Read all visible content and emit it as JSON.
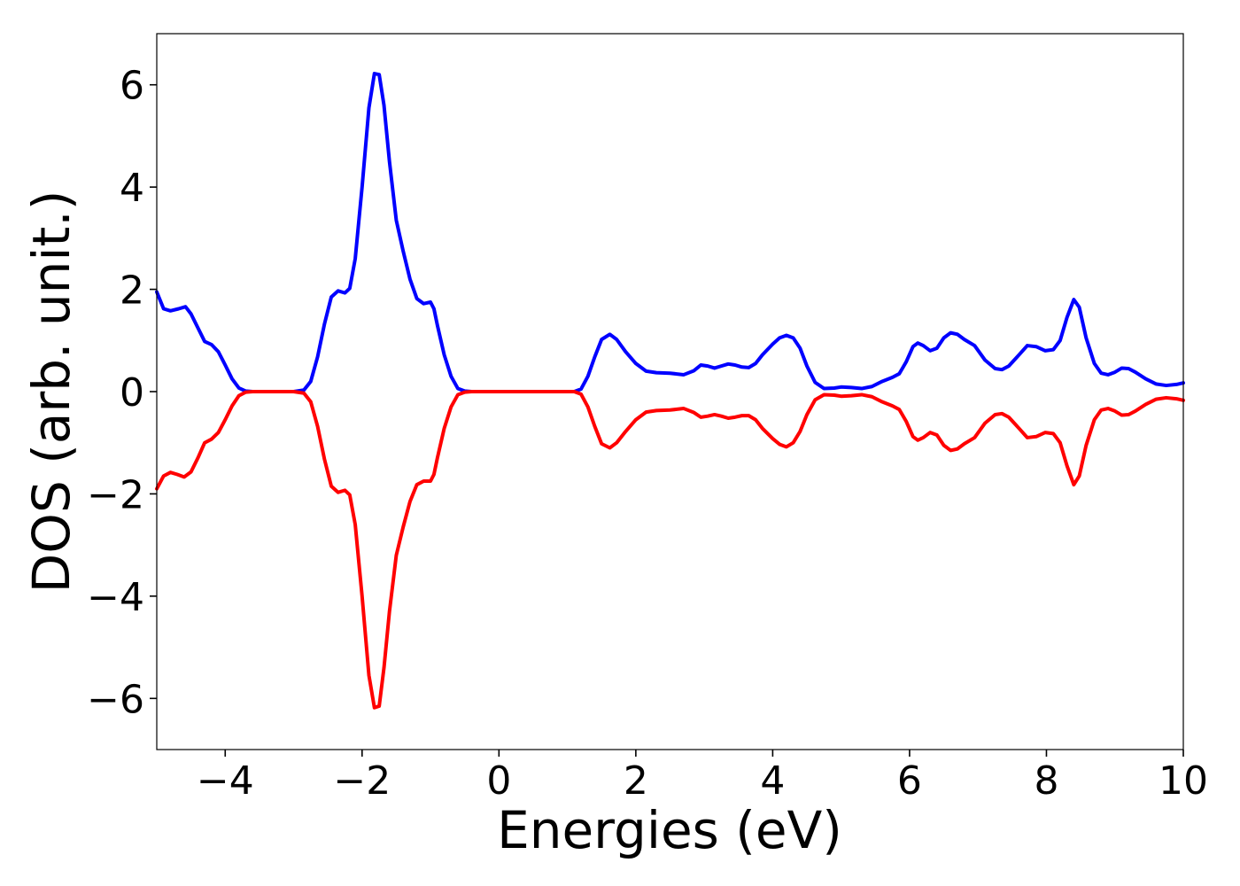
{
  "chart_data": {
    "type": "line",
    "xlabel": "Energies (eV)",
    "ylabel": "DOS (arb. unit.)",
    "xlim": [
      -5,
      10
    ],
    "ylim": [
      -7,
      7
    ],
    "xticks": [
      -4,
      -2,
      0,
      2,
      4,
      6,
      8,
      10
    ],
    "yticks": [
      -6,
      -4,
      -2,
      0,
      2,
      4,
      6
    ],
    "xtick_labels": [
      "−4",
      "−2",
      "0",
      "2",
      "4",
      "6",
      "8",
      "10"
    ],
    "ytick_labels": [
      "−6",
      "−4",
      "−2",
      "0",
      "2",
      "4",
      "6"
    ],
    "grid": false,
    "legend": "none",
    "series": [
      {
        "color": "#0000ff",
        "points": [
          [
            -5.0,
            1.95
          ],
          [
            -4.9,
            1.62
          ],
          [
            -4.8,
            1.58
          ],
          [
            -4.68,
            1.62
          ],
          [
            -4.58,
            1.66
          ],
          [
            -4.5,
            1.52
          ],
          [
            -4.4,
            1.25
          ],
          [
            -4.3,
            0.98
          ],
          [
            -4.2,
            0.92
          ],
          [
            -4.1,
            0.78
          ],
          [
            -4.0,
            0.52
          ],
          [
            -3.9,
            0.25
          ],
          [
            -3.8,
            0.07
          ],
          [
            -3.7,
            0.01
          ],
          [
            -3.6,
            0.0
          ],
          [
            -3.0,
            0.0
          ],
          [
            -2.85,
            0.03
          ],
          [
            -2.75,
            0.2
          ],
          [
            -2.65,
            0.68
          ],
          [
            -2.55,
            1.32
          ],
          [
            -2.45,
            1.85
          ],
          [
            -2.35,
            1.97
          ],
          [
            -2.25,
            1.93
          ],
          [
            -2.18,
            2.02
          ],
          [
            -2.1,
            2.6
          ],
          [
            -2.0,
            4.0
          ],
          [
            -1.9,
            5.55
          ],
          [
            -1.82,
            6.22
          ],
          [
            -1.75,
            6.2
          ],
          [
            -1.68,
            5.6
          ],
          [
            -1.6,
            4.5
          ],
          [
            -1.5,
            3.35
          ],
          [
            -1.4,
            2.75
          ],
          [
            -1.3,
            2.2
          ],
          [
            -1.2,
            1.82
          ],
          [
            -1.1,
            1.72
          ],
          [
            -1.0,
            1.75
          ],
          [
            -0.95,
            1.62
          ],
          [
            -0.9,
            1.3
          ],
          [
            -0.8,
            0.72
          ],
          [
            -0.7,
            0.3
          ],
          [
            -0.6,
            0.06
          ],
          [
            -0.5,
            0.01
          ],
          [
            -0.4,
            0.0
          ],
          [
            1.1,
            0.0
          ],
          [
            1.2,
            0.05
          ],
          [
            1.3,
            0.3
          ],
          [
            1.4,
            0.68
          ],
          [
            1.5,
            1.02
          ],
          [
            1.62,
            1.12
          ],
          [
            1.72,
            1.02
          ],
          [
            1.85,
            0.78
          ],
          [
            2.0,
            0.55
          ],
          [
            2.15,
            0.4
          ],
          [
            2.3,
            0.37
          ],
          [
            2.5,
            0.36
          ],
          [
            2.7,
            0.33
          ],
          [
            2.85,
            0.41
          ],
          [
            2.95,
            0.52
          ],
          [
            3.05,
            0.5
          ],
          [
            3.15,
            0.46
          ],
          [
            3.25,
            0.5
          ],
          [
            3.35,
            0.54
          ],
          [
            3.45,
            0.52
          ],
          [
            3.55,
            0.48
          ],
          [
            3.65,
            0.47
          ],
          [
            3.75,
            0.55
          ],
          [
            3.85,
            0.72
          ],
          [
            4.0,
            0.93
          ],
          [
            4.1,
            1.05
          ],
          [
            4.2,
            1.1
          ],
          [
            4.3,
            1.05
          ],
          [
            4.4,
            0.85
          ],
          [
            4.5,
            0.5
          ],
          [
            4.62,
            0.18
          ],
          [
            4.75,
            0.06
          ],
          [
            4.9,
            0.07
          ],
          [
            5.0,
            0.09
          ],
          [
            5.15,
            0.08
          ],
          [
            5.3,
            0.06
          ],
          [
            5.45,
            0.1
          ],
          [
            5.6,
            0.2
          ],
          [
            5.75,
            0.28
          ],
          [
            5.85,
            0.35
          ],
          [
            5.95,
            0.58
          ],
          [
            6.05,
            0.88
          ],
          [
            6.12,
            0.95
          ],
          [
            6.2,
            0.9
          ],
          [
            6.3,
            0.8
          ],
          [
            6.4,
            0.85
          ],
          [
            6.5,
            1.05
          ],
          [
            6.6,
            1.15
          ],
          [
            6.7,
            1.12
          ],
          [
            6.8,
            1.02
          ],
          [
            6.95,
            0.9
          ],
          [
            7.1,
            0.62
          ],
          [
            7.25,
            0.45
          ],
          [
            7.35,
            0.43
          ],
          [
            7.45,
            0.5
          ],
          [
            7.6,
            0.72
          ],
          [
            7.72,
            0.9
          ],
          [
            7.85,
            0.88
          ],
          [
            7.98,
            0.8
          ],
          [
            8.1,
            0.82
          ],
          [
            8.2,
            1.0
          ],
          [
            8.3,
            1.45
          ],
          [
            8.4,
            1.8
          ],
          [
            8.48,
            1.65
          ],
          [
            8.58,
            1.05
          ],
          [
            8.7,
            0.55
          ],
          [
            8.8,
            0.36
          ],
          [
            8.9,
            0.33
          ],
          [
            9.0,
            0.38
          ],
          [
            9.1,
            0.46
          ],
          [
            9.2,
            0.45
          ],
          [
            9.3,
            0.38
          ],
          [
            9.45,
            0.25
          ],
          [
            9.6,
            0.15
          ],
          [
            9.75,
            0.12
          ],
          [
            9.9,
            0.14
          ],
          [
            10.0,
            0.17
          ]
        ]
      },
      {
        "color": "#ff0000",
        "points": [
          [
            -5.0,
            -1.9
          ],
          [
            -4.9,
            -1.65
          ],
          [
            -4.8,
            -1.58
          ],
          [
            -4.7,
            -1.62
          ],
          [
            -4.6,
            -1.67
          ],
          [
            -4.5,
            -1.57
          ],
          [
            -4.4,
            -1.3
          ],
          [
            -4.3,
            -1.0
          ],
          [
            -4.2,
            -0.93
          ],
          [
            -4.1,
            -0.8
          ],
          [
            -4.0,
            -0.55
          ],
          [
            -3.9,
            -0.28
          ],
          [
            -3.8,
            -0.08
          ],
          [
            -3.7,
            -0.01
          ],
          [
            -3.6,
            0.0
          ],
          [
            -3.0,
            0.0
          ],
          [
            -2.85,
            -0.03
          ],
          [
            -2.75,
            -0.2
          ],
          [
            -2.65,
            -0.68
          ],
          [
            -2.55,
            -1.32
          ],
          [
            -2.45,
            -1.85
          ],
          [
            -2.35,
            -1.97
          ],
          [
            -2.25,
            -1.93
          ],
          [
            -2.18,
            -2.02
          ],
          [
            -2.1,
            -2.6
          ],
          [
            -2.0,
            -4.0
          ],
          [
            -1.9,
            -5.55
          ],
          [
            -1.82,
            -6.18
          ],
          [
            -1.75,
            -6.15
          ],
          [
            -1.68,
            -5.4
          ],
          [
            -1.6,
            -4.3
          ],
          [
            -1.5,
            -3.2
          ],
          [
            -1.4,
            -2.65
          ],
          [
            -1.3,
            -2.15
          ],
          [
            -1.2,
            -1.82
          ],
          [
            -1.1,
            -1.75
          ],
          [
            -1.0,
            -1.75
          ],
          [
            -0.95,
            -1.62
          ],
          [
            -0.9,
            -1.3
          ],
          [
            -0.8,
            -0.72
          ],
          [
            -0.7,
            -0.3
          ],
          [
            -0.6,
            -0.06
          ],
          [
            -0.5,
            -0.01
          ],
          [
            -0.4,
            0.0
          ],
          [
            1.1,
            0.0
          ],
          [
            1.2,
            -0.05
          ],
          [
            1.3,
            -0.3
          ],
          [
            1.4,
            -0.68
          ],
          [
            1.5,
            -1.02
          ],
          [
            1.62,
            -1.1
          ],
          [
            1.72,
            -1.0
          ],
          [
            1.85,
            -0.78
          ],
          [
            2.0,
            -0.55
          ],
          [
            2.15,
            -0.4
          ],
          [
            2.3,
            -0.37
          ],
          [
            2.5,
            -0.36
          ],
          [
            2.7,
            -0.33
          ],
          [
            2.85,
            -0.41
          ],
          [
            2.95,
            -0.5
          ],
          [
            3.05,
            -0.48
          ],
          [
            3.15,
            -0.45
          ],
          [
            3.25,
            -0.48
          ],
          [
            3.35,
            -0.52
          ],
          [
            3.45,
            -0.5
          ],
          [
            3.55,
            -0.47
          ],
          [
            3.65,
            -0.47
          ],
          [
            3.75,
            -0.55
          ],
          [
            3.85,
            -0.72
          ],
          [
            4.0,
            -0.92
          ],
          [
            4.1,
            -1.03
          ],
          [
            4.2,
            -1.08
          ],
          [
            4.3,
            -1.0
          ],
          [
            4.4,
            -0.78
          ],
          [
            4.5,
            -0.45
          ],
          [
            4.62,
            -0.16
          ],
          [
            4.75,
            -0.06
          ],
          [
            4.9,
            -0.07
          ],
          [
            5.0,
            -0.09
          ],
          [
            5.15,
            -0.08
          ],
          [
            5.3,
            -0.06
          ],
          [
            5.45,
            -0.1
          ],
          [
            5.6,
            -0.2
          ],
          [
            5.75,
            -0.28
          ],
          [
            5.85,
            -0.35
          ],
          [
            5.95,
            -0.58
          ],
          [
            6.05,
            -0.88
          ],
          [
            6.12,
            -0.95
          ],
          [
            6.2,
            -0.9
          ],
          [
            6.3,
            -0.8
          ],
          [
            6.4,
            -0.85
          ],
          [
            6.5,
            -1.05
          ],
          [
            6.6,
            -1.15
          ],
          [
            6.7,
            -1.12
          ],
          [
            6.8,
            -1.02
          ],
          [
            6.95,
            -0.9
          ],
          [
            7.1,
            -0.62
          ],
          [
            7.25,
            -0.45
          ],
          [
            7.35,
            -0.43
          ],
          [
            7.45,
            -0.5
          ],
          [
            7.6,
            -0.72
          ],
          [
            7.72,
            -0.9
          ],
          [
            7.85,
            -0.88
          ],
          [
            7.98,
            -0.8
          ],
          [
            8.1,
            -0.82
          ],
          [
            8.2,
            -1.0
          ],
          [
            8.3,
            -1.45
          ],
          [
            8.4,
            -1.82
          ],
          [
            8.48,
            -1.65
          ],
          [
            8.58,
            -1.05
          ],
          [
            8.7,
            -0.55
          ],
          [
            8.8,
            -0.36
          ],
          [
            8.9,
            -0.33
          ],
          [
            9.0,
            -0.38
          ],
          [
            9.1,
            -0.46
          ],
          [
            9.2,
            -0.45
          ],
          [
            9.3,
            -0.38
          ],
          [
            9.45,
            -0.25
          ],
          [
            9.6,
            -0.15
          ],
          [
            9.75,
            -0.12
          ],
          [
            9.9,
            -0.14
          ],
          [
            10.0,
            -0.17
          ]
        ]
      }
    ]
  }
}
